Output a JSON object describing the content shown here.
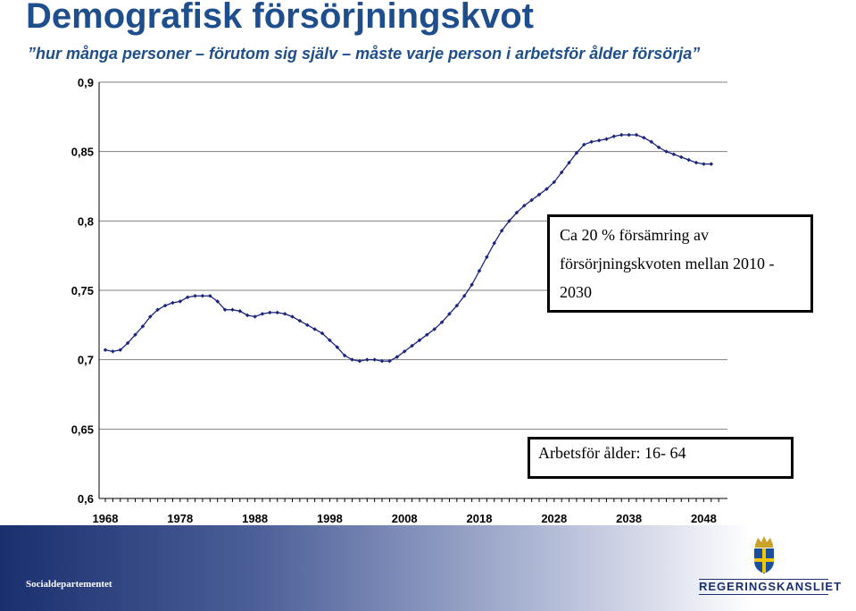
{
  "header": {
    "title": "Demografisk försörjningskvot",
    "subtitle": "”hur många personer – förutom sig själv – måste varje person i arbetsför ålder försörja”"
  },
  "annotations": {
    "box1_line1": "Ca 20 % försämring av",
    "box1_line2": "försörjningskvoten mellan 2010 -",
    "box1_line3": "2030",
    "box2": "Arbetsför ålder: 16- 64"
  },
  "footer": {
    "department": "Socialdepartementet",
    "logo_text": "REGERINGSKANSLIET"
  },
  "colors": {
    "title": "#1f4e8c",
    "line": "#1a237e",
    "marker": "#1a237e",
    "grid": "#808080",
    "footer_dark": "#1a2f6e"
  },
  "chart_data": {
    "type": "line",
    "x_start": 1968,
    "x_step": 1,
    "x_tick_labels": [
      "1968",
      "1978",
      "1988",
      "1998",
      "2008",
      "2018",
      "2028",
      "2038",
      "2048"
    ],
    "y_tick_labels": [
      "0,9",
      "0,85",
      "0,8",
      "0,75",
      "0,7",
      "0,65",
      "0,6"
    ],
    "y_ticks": [
      0.9,
      0.85,
      0.8,
      0.75,
      0.7,
      0.65,
      0.6
    ],
    "ylim": [
      0.6,
      0.9
    ],
    "xlim": [
      1968,
      2050
    ],
    "grid": true,
    "series": [
      {
        "values": [
          0.707,
          0.706,
          0.707,
          0.712,
          0.718,
          0.724,
          0.731,
          0.736,
          0.739,
          0.741,
          0.742,
          0.745,
          0.746,
          0.746,
          0.746,
          0.742,
          0.736,
          0.736,
          0.735,
          0.732,
          0.731,
          0.733,
          0.734,
          0.734,
          0.733,
          0.731,
          0.728,
          0.725,
          0.722,
          0.719,
          0.714,
          0.709,
          0.703,
          0.7,
          0.699,
          0.7,
          0.7,
          0.699,
          0.699,
          0.702,
          0.706,
          0.71,
          0.714,
          0.718,
          0.722,
          0.727,
          0.733,
          0.739,
          0.746,
          0.754,
          0.764,
          0.774,
          0.784,
          0.793,
          0.8,
          0.806,
          0.811,
          0.815,
          0.819,
          0.823,
          0.828,
          0.835,
          0.842,
          0.849,
          0.855,
          0.857,
          0.858,
          0.859,
          0.861,
          0.862,
          0.862,
          0.862,
          0.86,
          0.857,
          0.853,
          0.85,
          0.848,
          0.846,
          0.844,
          0.842,
          0.841,
          0.841
        ]
      }
    ]
  }
}
